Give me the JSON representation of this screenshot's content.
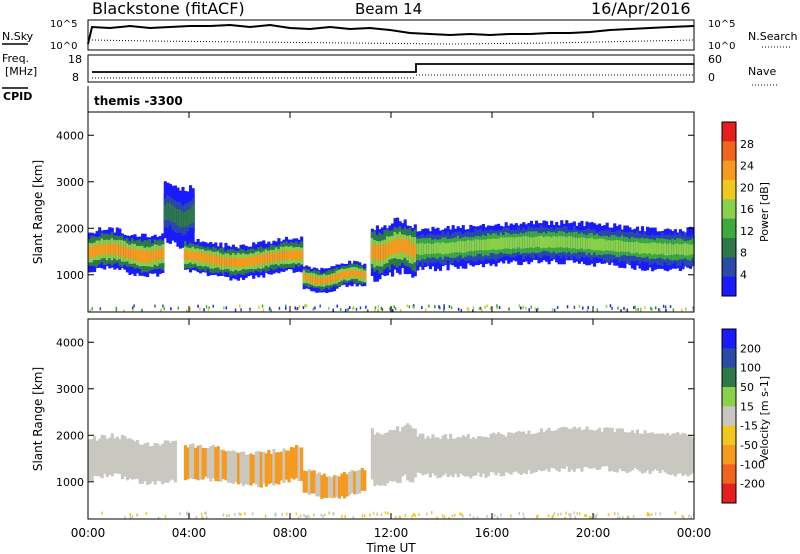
{
  "header": {
    "station": "Blackstone (fitACF)",
    "beam": "Beam 14",
    "date": "16/Apr/2016"
  },
  "panels": {
    "nsky_label": "N.Sky",
    "nsearch_label": "N.Search",
    "count_tick_hi": "10^5",
    "count_tick_lo": "10^0",
    "freq_label_1": "Freq.",
    "freq_label_2": "[MHz]",
    "freq_ticks": [
      "18",
      "8"
    ],
    "nave_label": "Nave",
    "nave_ticks": [
      "60",
      "0"
    ],
    "cpid_label": "CPID",
    "cpid_value": "themis -3300"
  },
  "colors": {
    "power_scale": [
      "#1a1aff",
      "#2b4aa8",
      "#2e7a46",
      "#3caa3c",
      "#8ad04a",
      "#f0c81e",
      "#f59a1e",
      "#f0641e",
      "#e61e1e"
    ],
    "velocity_scale": [
      "#e61e1e",
      "#f0641e",
      "#f59a1e",
      "#f0c81e",
      "#c8c8c0",
      "#8ad04a",
      "#2e7a46",
      "#2b4aa8",
      "#1a1aff"
    ],
    "ground_scatter": "#c8c8c0"
  },
  "chart_data": [
    {
      "type": "heatmap",
      "title": "",
      "xlabel": "",
      "ylabel": "Slant Range [km]",
      "xticks": [
        "00:00",
        "04:00",
        "08:00",
        "12:00",
        "16:00",
        "20:00",
        "00:00"
      ],
      "yticks": [
        "1000",
        "2000",
        "3000",
        "4000"
      ],
      "ylim": [
        200,
        4500
      ],
      "colorbar_label": "Power [dB]",
      "colorbar_ticks": [
        "4",
        "8",
        "12",
        "16",
        "20",
        "24",
        "28"
      ],
      "colorbar_range": [
        0,
        32
      ],
      "bands": [
        {
          "t_start": 0.0,
          "t_end": 3.0,
          "range_start": 1050,
          "range_end": 1900,
          "peak_db": 26
        },
        {
          "t_start": 3.0,
          "t_end": 4.2,
          "range_start": 1650,
          "range_end": 2900,
          "peak_db": 10
        },
        {
          "t_start": 3.8,
          "t_end": 8.5,
          "range_start": 1000,
          "range_end": 1700,
          "peak_db": 28
        },
        {
          "t_start": 8.5,
          "t_end": 11.0,
          "range_start": 700,
          "range_end": 1200,
          "peak_db": 28
        },
        {
          "t_start": 11.2,
          "t_end": 13.0,
          "range_start": 1000,
          "range_end": 2100,
          "peak_db": 26
        },
        {
          "t_start": 13.0,
          "t_end": 24.0,
          "range_start": 1200,
          "range_end": 2050,
          "peak_db": 20
        }
      ]
    },
    {
      "type": "heatmap",
      "title": "",
      "xlabel": "Time UT",
      "ylabel": "Slant Range [km]",
      "xticks": [
        "00:00",
        "04:00",
        "08:00",
        "12:00",
        "16:00",
        "20:00",
        "00:00"
      ],
      "yticks": [
        "1000",
        "2000",
        "3000",
        "4000"
      ],
      "ylim": [
        200,
        4500
      ],
      "colorbar_label": "Velocity [m s-1]",
      "colorbar_ticks": [
        "200",
        "100",
        "50",
        "15",
        "-15",
        "-50",
        "-100",
        "-200"
      ],
      "bands": [
        {
          "t_start": 0.0,
          "t_end": 3.5,
          "range_start": 1050,
          "range_end": 1900,
          "velocity": "ground scatter"
        },
        {
          "t_start": 3.8,
          "t_end": 8.5,
          "range_start": 1000,
          "range_end": 1700,
          "velocity": -50
        },
        {
          "t_start": 8.5,
          "t_end": 11.0,
          "range_start": 700,
          "range_end": 1200,
          "velocity": -50
        },
        {
          "t_start": 11.2,
          "t_end": 13.0,
          "range_start": 1000,
          "range_end": 2100,
          "velocity": 15
        },
        {
          "t_start": 13.0,
          "t_end": 24.0,
          "range_start": 1200,
          "range_end": 2050,
          "velocity": "ground scatter"
        }
      ]
    }
  ]
}
